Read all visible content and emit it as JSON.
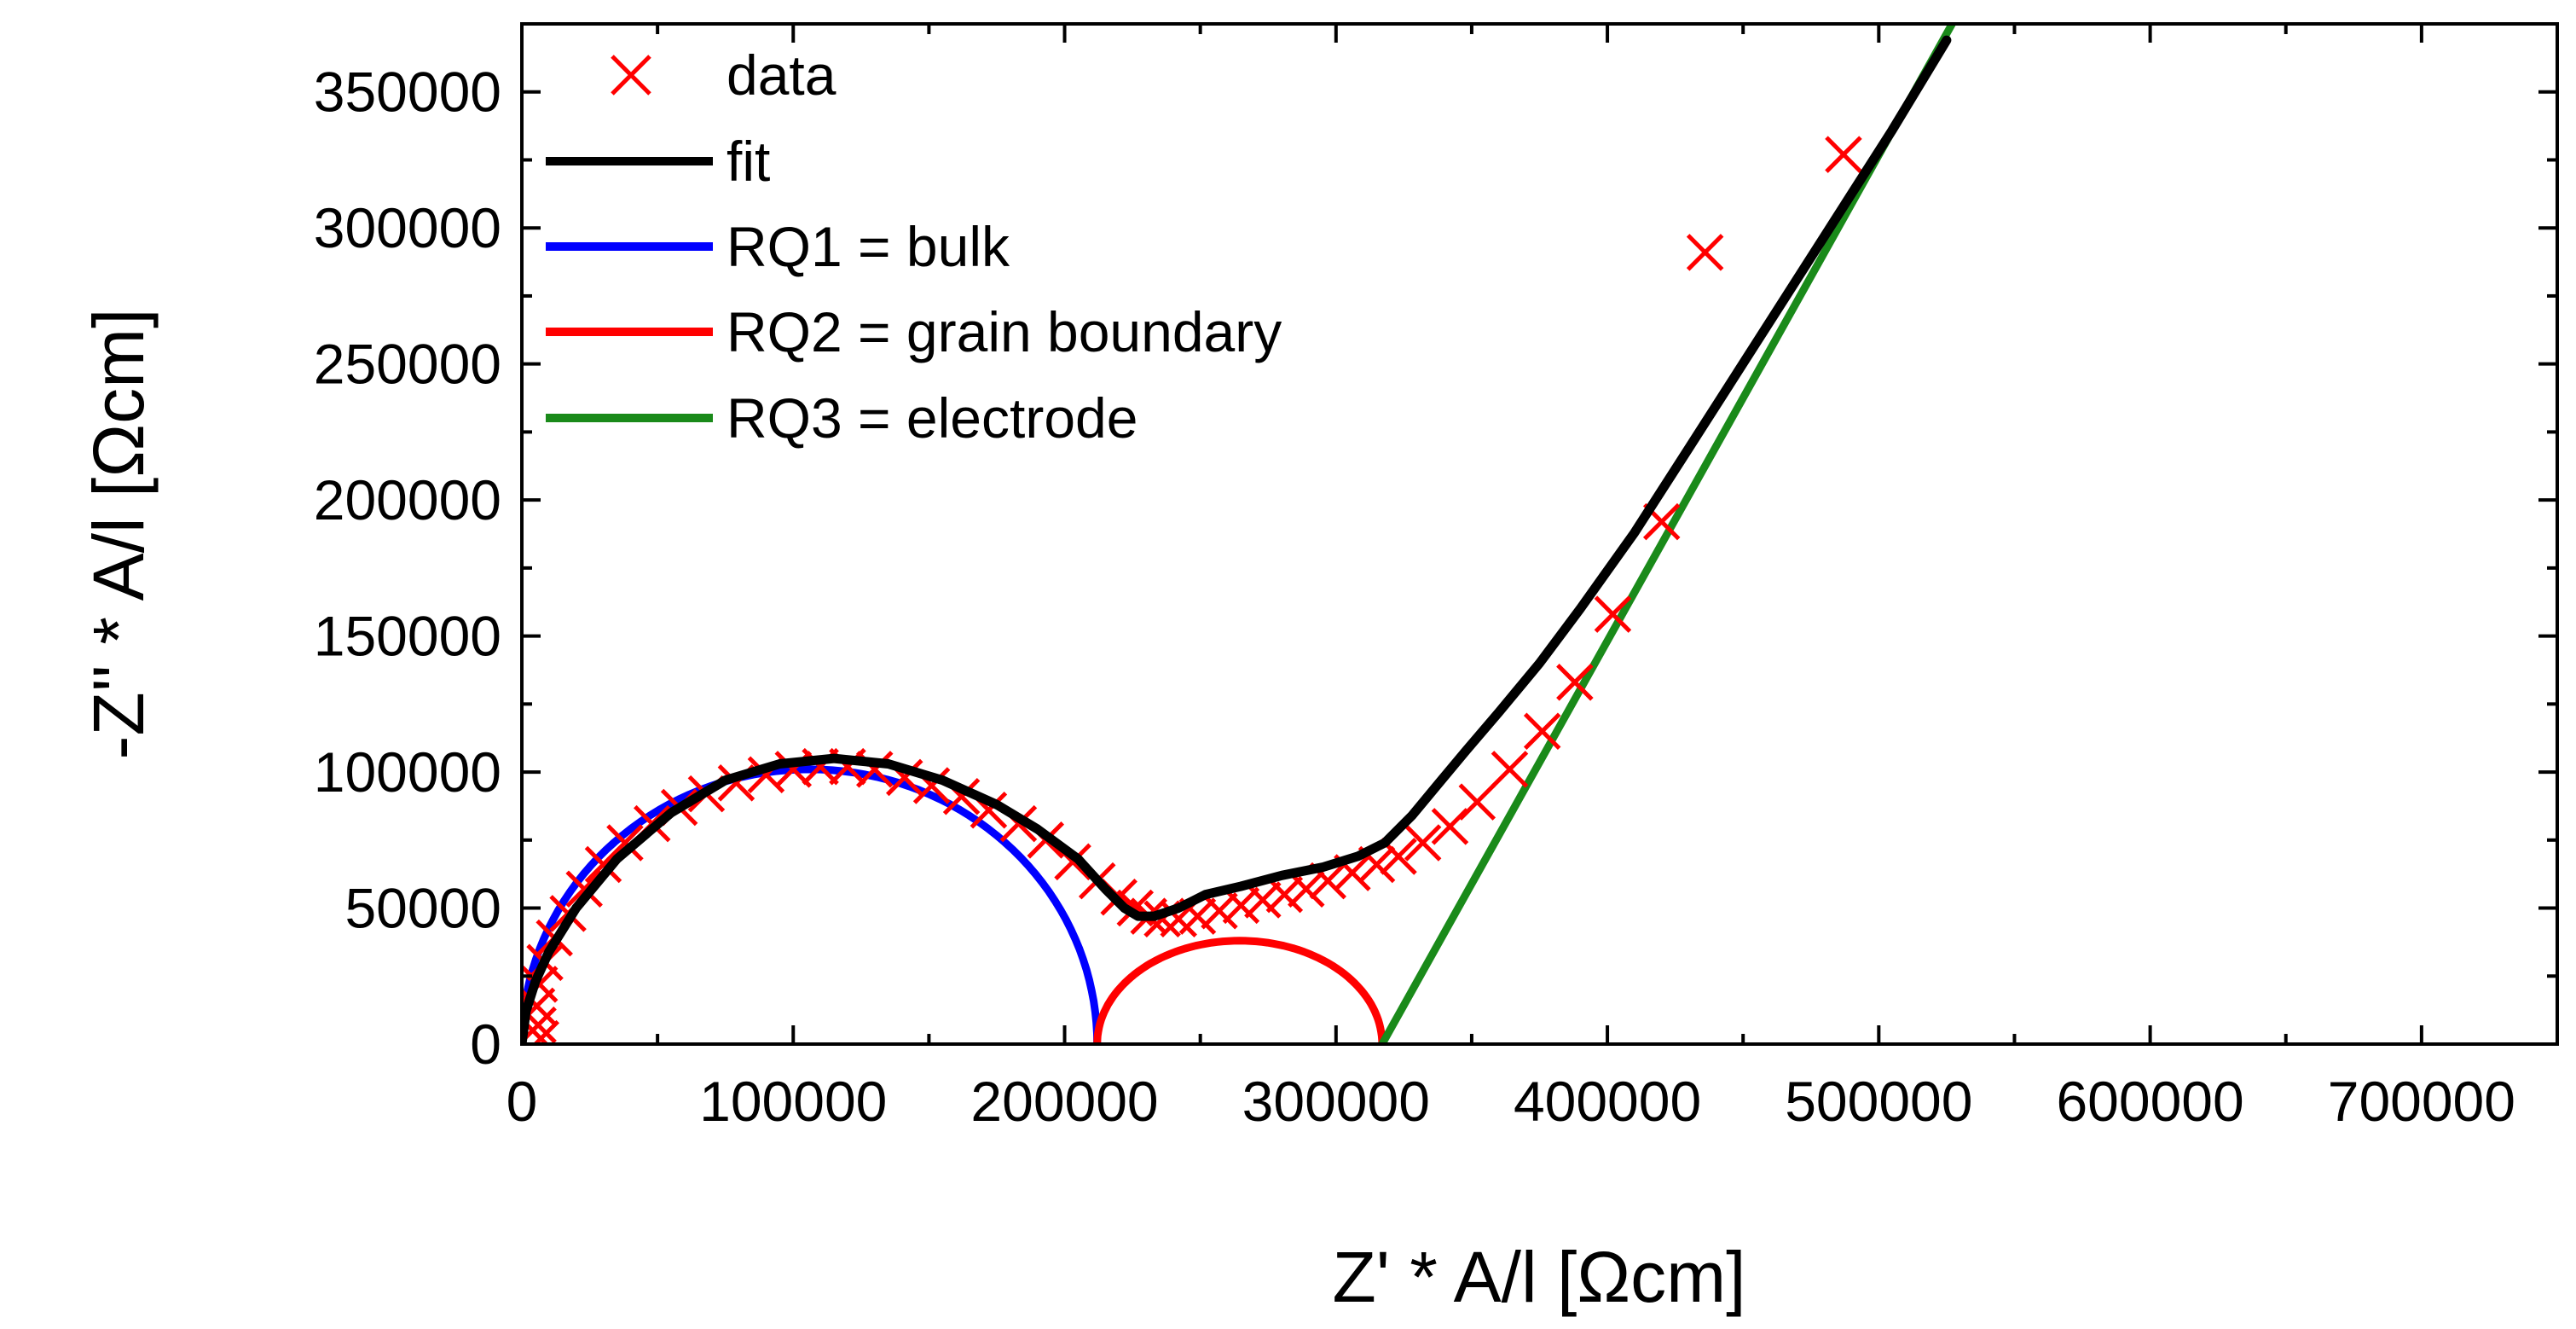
{
  "chart_data": {
    "type": "scatter",
    "xlabel": "Z' * A/l [Ωcm]",
    "ylabel": "-Z'' * A/l [Ωcm]",
    "xlim": [
      0,
      750000
    ],
    "ylim": [
      0,
      375000
    ],
    "xticks": [
      0,
      100000,
      200000,
      300000,
      400000,
      500000,
      600000,
      700000
    ],
    "yticks": [
      0,
      50000,
      100000,
      150000,
      200000,
      250000,
      300000,
      350000
    ],
    "xtick_labels": [
      "0",
      "100000",
      "200000",
      "300000",
      "400000",
      "500000",
      "600000",
      "700000"
    ],
    "ytick_labels": [
      "0",
      "50000",
      "100000",
      "150000",
      "200000",
      "250000",
      "300000",
      "350000"
    ],
    "grid": false,
    "legend_position": "top-left",
    "series": [
      {
        "name": "data",
        "kind": "markers",
        "marker": "x",
        "color": "#ff0000",
        "x": [
          7000,
          6000,
          5500,
          6500,
          8500,
          12000,
          17000,
          23000,
          30000,
          38000,
          48000,
          58000,
          68000,
          79000,
          90000,
          100000,
          110000,
          120000,
          130000,
          141000,
          151000,
          162000,
          172000,
          183000,
          193000,
          203000,
          212000,
          220000,
          226000,
          231000,
          236000,
          242000,
          249000,
          257000,
          265000,
          273000,
          281000,
          289000,
          297000,
          306000,
          315000,
          323000,
          332000,
          342000,
          352000,
          364000,
          376000,
          388000,
          402000,
          420000,
          436000,
          487000
        ],
        "y": [
          2000,
          7000,
          14000,
          22000,
          30000,
          39000,
          48000,
          57000,
          66000,
          74000,
          81000,
          87000,
          92000,
          96000,
          99000,
          101000,
          102000,
          102000,
          101000,
          98000,
          95000,
          91000,
          86000,
          81000,
          75000,
          67000,
          60000,
          54000,
          50000,
          47000,
          46000,
          46000,
          47000,
          49000,
          51000,
          53000,
          55000,
          57000,
          60000,
          63000,
          66000,
          69000,
          74000,
          80000,
          89000,
          101000,
          115000,
          133000,
          158000,
          192000,
          291000,
          327000
        ]
      },
      {
        "name": "fit",
        "kind": "line",
        "color": "#000000",
        "x": [
          0,
          1500,
          5000,
          10000,
          20000,
          35000,
          55000,
          75000,
          95000,
          115000,
          135000,
          155000,
          175000,
          190000,
          205000,
          215000,
          222000,
          227000,
          233000,
          242000,
          252000,
          265000,
          280000,
          295000,
          308000,
          318000,
          328000,
          338000,
          348000,
          360000,
          375000,
          390000,
          410000,
          430000,
          455000,
          480000,
          505000,
          525000
        ],
        "y": [
          0,
          12000,
          23000,
          34000,
          50000,
          68000,
          85000,
          97000,
          103000,
          105000,
          103000,
          97000,
          88000,
          79000,
          68000,
          57000,
          50000,
          47000,
          47000,
          50000,
          55000,
          58000,
          62000,
          65000,
          69000,
          74000,
          84000,
          96000,
          108000,
          122000,
          140000,
          160000,
          188000,
          219000,
          258000,
          297000,
          336000,
          369000
        ]
      },
      {
        "name": "RQ1 = bulk",
        "kind": "line",
        "shape": "semicircle",
        "color": "#0000ff",
        "x_start": 0,
        "x_end": 212000,
        "peak": 101000
      },
      {
        "name": "RQ2 = grain boundary",
        "kind": "line",
        "shape": "semicircle",
        "color": "#ff0000",
        "x_start": 212000,
        "x_end": 317000,
        "peak": 38000
      },
      {
        "name": "RQ3 = electrode",
        "kind": "line",
        "shape": "straight",
        "color": "#1a8a1a",
        "x": [
          317000,
          527000
        ],
        "y": [
          0,
          375000
        ]
      }
    ]
  }
}
